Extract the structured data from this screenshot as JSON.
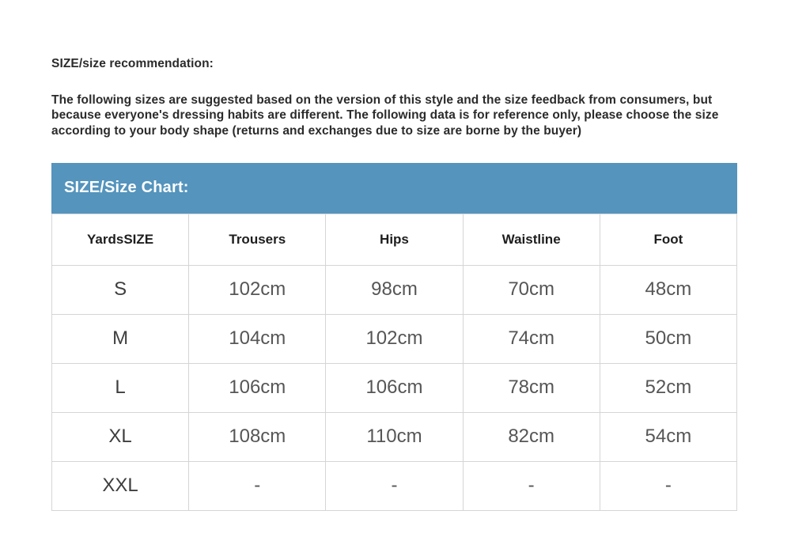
{
  "page": {
    "heading": "SIZE/size recommendation:",
    "paragraph": "The following sizes are suggested based on the version of this style and the size feedback from consumers, but because everyone's dressing habits are different. The following data is for reference only, please choose the size according to your body shape (returns and exchanges due to size are borne by the buyer)"
  },
  "size_chart": {
    "title": "SIZE/Size Chart:",
    "columns": [
      "YardsSIZE",
      "Trousers",
      "Hips",
      "Waistline",
      "Foot"
    ],
    "rows": [
      [
        "S",
        "102cm",
        "98cm",
        "70cm",
        "48cm"
      ],
      [
        "M",
        "104cm",
        "102cm",
        "74cm",
        "50cm"
      ],
      [
        "L",
        "106cm",
        "106cm",
        "78cm",
        "52cm"
      ],
      [
        "XL",
        "108cm",
        "110cm",
        "82cm",
        "54cm"
      ],
      [
        "XXL",
        "-",
        "-",
        "-",
        "-"
      ]
    ]
  },
  "colors": {
    "accent_blue": "#5494bd",
    "table_border": "#d5d5d5",
    "heading_text": "#2b2b2b",
    "cell_text": "#565656"
  }
}
